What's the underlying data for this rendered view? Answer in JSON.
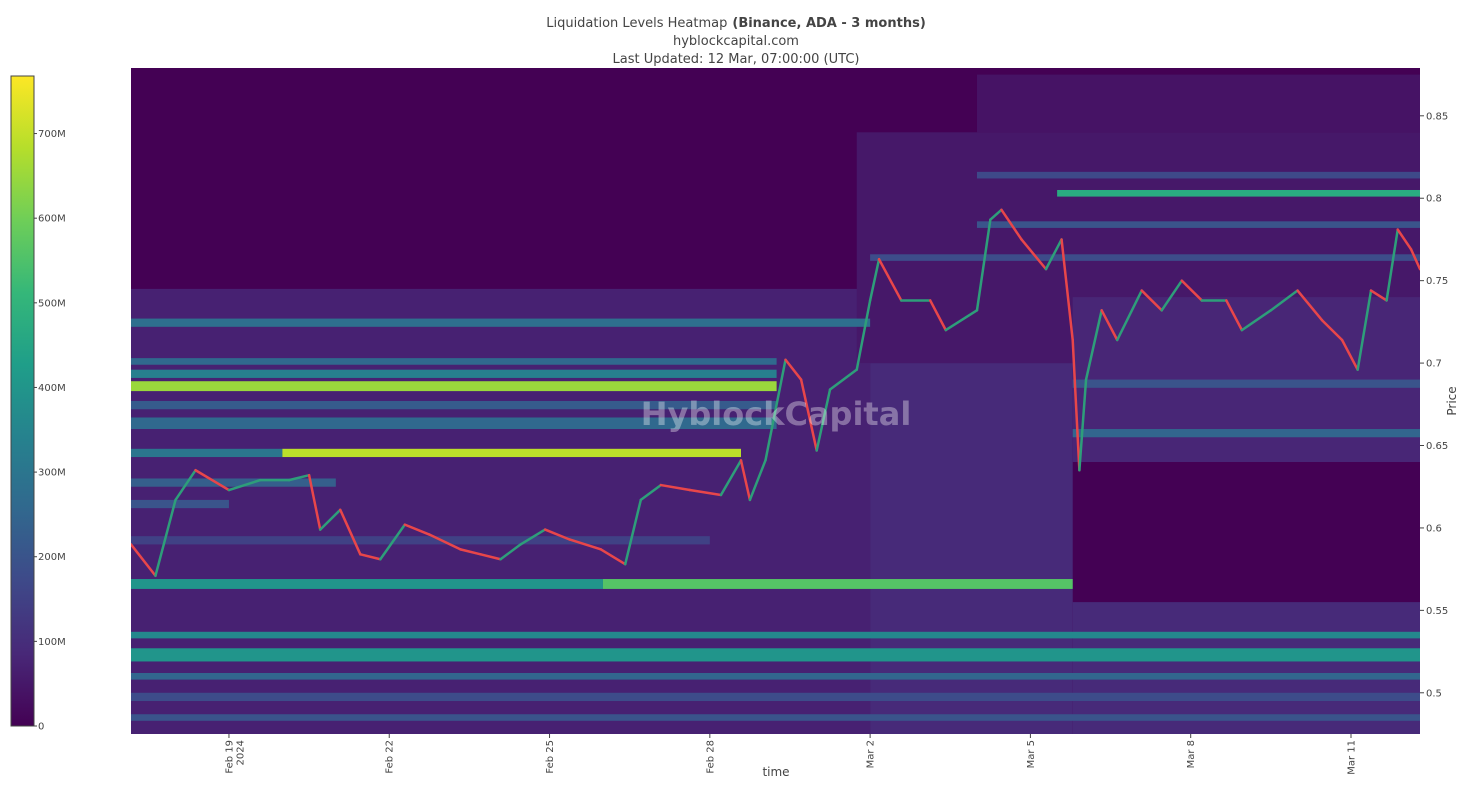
{
  "chart_data": {
    "type": "heatmap",
    "title": "Liquidation Levels Heatmap",
    "title_bold": "(Binance, ADA - 3 months)",
    "subtitle": "hyblockcapital.com",
    "updated": "Last Updated: 12 Mar, 07:00:00 (UTC)",
    "watermark": "HyblockCapital",
    "x_label": "time",
    "y_label": "Price",
    "xlim": [
      "2024-02-17T04:00",
      "2024-03-12T07:00"
    ],
    "xticks": [
      {
        "value": "2024-02-19T00:00",
        "label": "Feb 19"
      },
      {
        "value": "2024-02-22T00:00",
        "label": "Feb 22"
      },
      {
        "value": "2024-02-25T00:00",
        "label": "Feb 25"
      },
      {
        "value": "2024-02-28T00:00",
        "label": "Feb 28"
      },
      {
        "value": "2024-03-02T00:00",
        "label": "Mar 2"
      },
      {
        "value": "2024-03-05T00:00",
        "label": "Mar 5"
      },
      {
        "value": "2024-03-08T00:00",
        "label": "Mar 8"
      },
      {
        "value": "2024-03-11T00:00",
        "label": "Mar 11"
      }
    ],
    "xtick_year": "2024",
    "ylim": [
      0.475,
      0.879
    ],
    "yticks": [
      0.5,
      0.55,
      0.6,
      0.65,
      0.7,
      0.75,
      0.8,
      0.85
    ],
    "zlim": [
      0,
      768
    ],
    "zticks": [
      0,
      {
        "value": 100,
        "label": "100M"
      },
      {
        "value": 200,
        "label": "200M"
      },
      {
        "value": 300,
        "label": "300M"
      },
      {
        "value": 400,
        "label": "400M"
      },
      {
        "value": 500,
        "label": "500M"
      },
      {
        "value": 600,
        "label": "600M"
      },
      {
        "value": 700,
        "label": "700M"
      }
    ],
    "colorscale": [
      "#440154",
      "#482878",
      "#3e4989",
      "#31688e",
      "#26828e",
      "#1f9e89",
      "#35b779",
      "#6ece58",
      "#b5de2b",
      "#fde725"
    ],
    "levels": [
      {
        "from": 0.475,
        "to": 0.745,
        "start": "2024-02-17T04:00",
        "end": "2024-03-02T00:00",
        "value": 70
      },
      {
        "from": 0.475,
        "to": 0.7,
        "start": "2024-03-02T00:00",
        "end": "2024-03-05T19:00",
        "value": 90
      },
      {
        "from": 0.7,
        "to": 0.84,
        "start": "2024-03-01T18:00",
        "end": "2024-03-12T07:00",
        "value": 50
      },
      {
        "from": 0.84,
        "to": 0.875,
        "start": "2024-03-04T00:00",
        "end": "2024-03-12T07:00",
        "value": 40
      },
      {
        "from": 0.475,
        "to": 0.555,
        "start": "2024-03-05T19:00",
        "end": "2024-03-12T07:00",
        "value": 90
      },
      {
        "from": 0.64,
        "to": 0.74,
        "start": "2024-03-05T19:00",
        "end": "2024-03-12T07:00",
        "value": 80
      },
      {
        "from": 0.683,
        "to": 0.689,
        "start": "2024-02-17T04:00",
        "end": "2024-02-29T06:00",
        "value": 650
      },
      {
        "from": 0.691,
        "to": 0.696,
        "start": "2024-02-17T04:00",
        "end": "2024-02-29T06:00",
        "value": 330
      },
      {
        "from": 0.699,
        "to": 0.703,
        "start": "2024-02-17T04:00",
        "end": "2024-02-29T06:00",
        "value": 260
      },
      {
        "from": 0.643,
        "to": 0.648,
        "start": "2024-02-17T04:00",
        "end": "2024-02-20T00:00",
        "value": 300
      },
      {
        "from": 0.643,
        "to": 0.648,
        "start": "2024-02-20T00:00",
        "end": "2024-02-28T14:00",
        "value": 690
      },
      {
        "from": 0.722,
        "to": 0.727,
        "start": "2024-02-17T04:00",
        "end": "2024-03-02T00:00",
        "value": 280
      },
      {
        "from": 0.66,
        "to": 0.667,
        "start": "2024-02-17T04:00",
        "end": "2024-02-29T06:00",
        "value": 260
      },
      {
        "from": 0.672,
        "to": 0.677,
        "start": "2024-02-17T04:00",
        "end": "2024-02-29T06:00",
        "value": 220
      },
      {
        "from": 0.625,
        "to": 0.63,
        "start": "2024-02-17T04:00",
        "end": "2024-02-21T00:00",
        "value": 230
      },
      {
        "from": 0.612,
        "to": 0.617,
        "start": "2024-02-17T04:00",
        "end": "2024-02-19T00:00",
        "value": 200
      },
      {
        "from": 0.59,
        "to": 0.595,
        "start": "2024-02-17T04:00",
        "end": "2024-02-28T00:00",
        "value": 150
      },
      {
        "from": 0.563,
        "to": 0.569,
        "start": "2024-02-17T04:00",
        "end": "2024-02-26T00:00",
        "value": 400
      },
      {
        "from": 0.563,
        "to": 0.569,
        "start": "2024-02-26T00:00",
        "end": "2024-03-05T19:00",
        "value": 560
      },
      {
        "from": 0.533,
        "to": 0.537,
        "start": "2024-02-17T04:00",
        "end": "2024-03-12T07:00",
        "value": 360
      },
      {
        "from": 0.519,
        "to": 0.527,
        "start": "2024-02-17T04:00",
        "end": "2024-03-12T07:00",
        "value": 400
      },
      {
        "from": 0.508,
        "to": 0.512,
        "start": "2024-02-17T04:00",
        "end": "2024-03-12T07:00",
        "value": 250
      },
      {
        "from": 0.495,
        "to": 0.5,
        "start": "2024-02-17T04:00",
        "end": "2024-03-12T07:00",
        "value": 180
      },
      {
        "from": 0.483,
        "to": 0.487,
        "start": "2024-02-17T04:00",
        "end": "2024-03-12T07:00",
        "value": 200
      },
      {
        "from": 0.801,
        "to": 0.805,
        "start": "2024-03-05T12:00",
        "end": "2024-03-12T07:00",
        "value": 470
      },
      {
        "from": 0.782,
        "to": 0.786,
        "start": "2024-03-04T00:00",
        "end": "2024-03-12T07:00",
        "value": 200
      },
      {
        "from": 0.812,
        "to": 0.816,
        "start": "2024-03-04T00:00",
        "end": "2024-03-12T07:00",
        "value": 170
      },
      {
        "from": 0.762,
        "to": 0.766,
        "start": "2024-03-02T00:00",
        "end": "2024-03-12T07:00",
        "value": 180
      },
      {
        "from": 0.655,
        "to": 0.66,
        "start": "2024-03-05T19:00",
        "end": "2024-03-12T07:00",
        "value": 250
      },
      {
        "from": 0.685,
        "to": 0.69,
        "start": "2024-03-05T19:00",
        "end": "2024-03-12T07:00",
        "value": 200
      }
    ],
    "price": {
      "up_color": "#2e9e7a",
      "down_color": "#e8464a",
      "x": [
        "2024-02-17T04:00",
        "2024-02-17T15:00",
        "2024-02-18T00:00",
        "2024-02-18T09:00",
        "2024-02-19T00:00",
        "2024-02-19T14:00",
        "2024-02-20T03:00",
        "2024-02-20T12:00",
        "2024-02-20T17:00",
        "2024-02-21T02:00",
        "2024-02-21T11:00",
        "2024-02-21T20:00",
        "2024-02-22T07:00",
        "2024-02-22T18:00",
        "2024-02-23T08:00",
        "2024-02-23T17:00",
        "2024-02-24T02:00",
        "2024-02-24T11:00",
        "2024-02-24T22:00",
        "2024-02-25T09:00",
        "2024-02-25T23:00",
        "2024-02-26T10:00",
        "2024-02-26T17:00",
        "2024-02-27T02:00",
        "2024-02-27T15:00",
        "2024-02-28T05:00",
        "2024-02-28T14:00",
        "2024-02-28T18:00",
        "2024-02-29T01:00",
        "2024-02-29T10:00",
        "2024-02-29T17:00",
        "2024-03-01T00:00",
        "2024-03-01T06:00",
        "2024-03-01T18:00",
        "2024-03-02T00:00",
        "2024-03-02T04:00",
        "2024-03-02T14:00",
        "2024-03-03T03:00",
        "2024-03-03T10:00",
        "2024-03-04T00:00",
        "2024-03-04T06:00",
        "2024-03-04T11:00",
        "2024-03-04T20:00",
        "2024-03-05T07:00",
        "2024-03-05T14:00",
        "2024-03-05T19:00",
        "2024-03-05T22:00",
        "2024-03-06T01:00",
        "2024-03-06T08:00",
        "2024-03-06T15:00",
        "2024-03-07T02:00",
        "2024-03-07T11:00",
        "2024-03-07T20:00",
        "2024-03-08T05:00",
        "2024-03-08T16:00",
        "2024-03-08T23:00",
        "2024-03-09T12:00",
        "2024-03-10T00:00",
        "2024-03-10T11:00",
        "2024-03-10T20:00",
        "2024-03-11T03:00",
        "2024-03-11T09:00",
        "2024-03-11T16:00",
        "2024-03-11T21:00",
        "2024-03-12T03:00",
        "2024-03-12T07:00"
      ],
      "values": [
        0.59,
        0.571,
        0.617,
        0.635,
        0.623,
        0.629,
        0.629,
        0.632,
        0.599,
        0.611,
        0.584,
        0.581,
        0.602,
        0.596,
        0.587,
        0.584,
        0.581,
        0.59,
        0.599,
        0.593,
        0.587,
        0.578,
        0.617,
        0.626,
        0.623,
        0.62,
        0.641,
        0.617,
        0.641,
        0.702,
        0.69,
        0.647,
        0.684,
        0.696,
        0.738,
        0.763,
        0.738,
        0.738,
        0.72,
        0.732,
        0.787,
        0.793,
        0.775,
        0.757,
        0.775,
        0.714,
        0.635,
        0.69,
        0.732,
        0.714,
        0.744,
        0.732,
        0.75,
        0.738,
        0.738,
        0.72,
        0.732,
        0.744,
        0.726,
        0.714,
        0.696,
        0.744,
        0.738,
        0.781,
        0.769,
        0.757
      ]
    }
  }
}
